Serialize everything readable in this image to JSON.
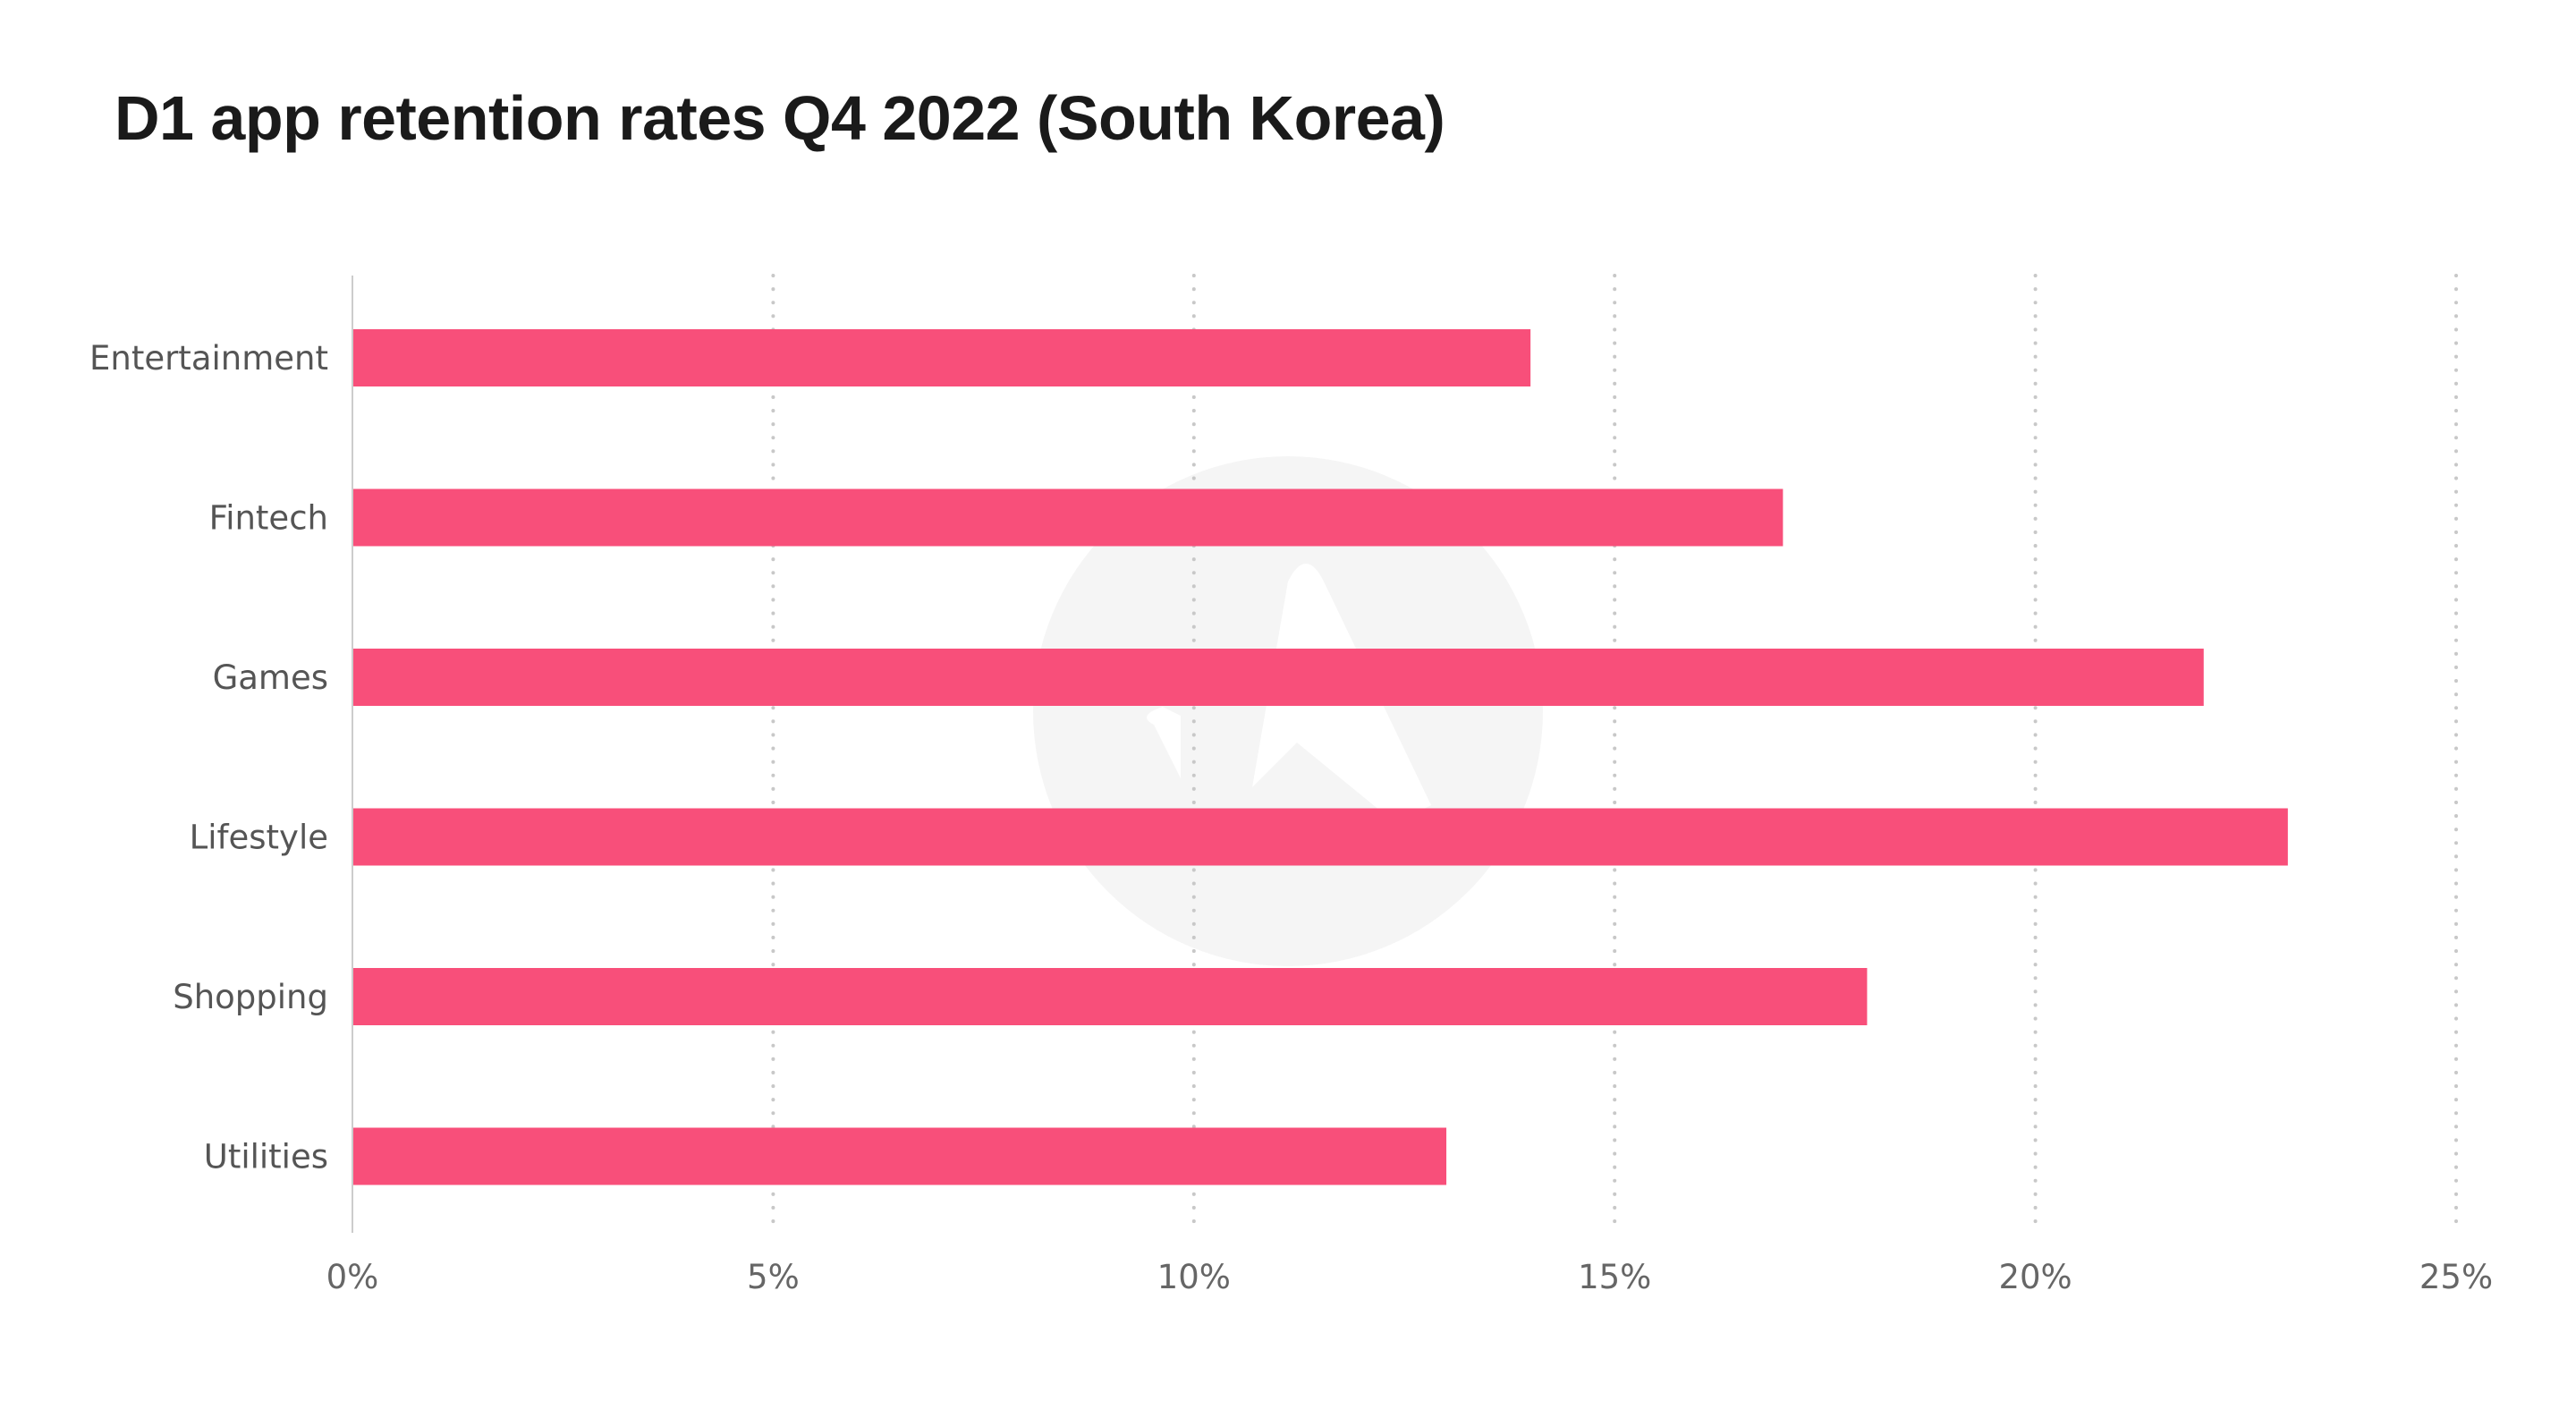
{
  "title": "D1 app retention rates Q4 2022 (South Korea)",
  "chart_data": {
    "type": "bar",
    "orientation": "horizontal",
    "title": "D1 app retention rates Q4 2022 (South Korea)",
    "xlabel": "",
    "ylabel": "",
    "categories": [
      "Entertainment",
      "Fintech",
      "Games",
      "Lifestyle",
      "Shopping",
      "Utilities"
    ],
    "values": [
      14,
      17,
      22,
      23,
      18,
      13
    ],
    "value_unit": "%",
    "xlim": [
      0,
      25
    ],
    "x_ticks": [
      0,
      5,
      10,
      15,
      20,
      25
    ],
    "x_tick_labels": [
      "0%",
      "5%",
      "10%",
      "15%",
      "20%",
      "25%"
    ],
    "grid": "vertical-dotted",
    "legend": "none",
    "bar_color": "#f84f7a",
    "watermark": "logo"
  }
}
